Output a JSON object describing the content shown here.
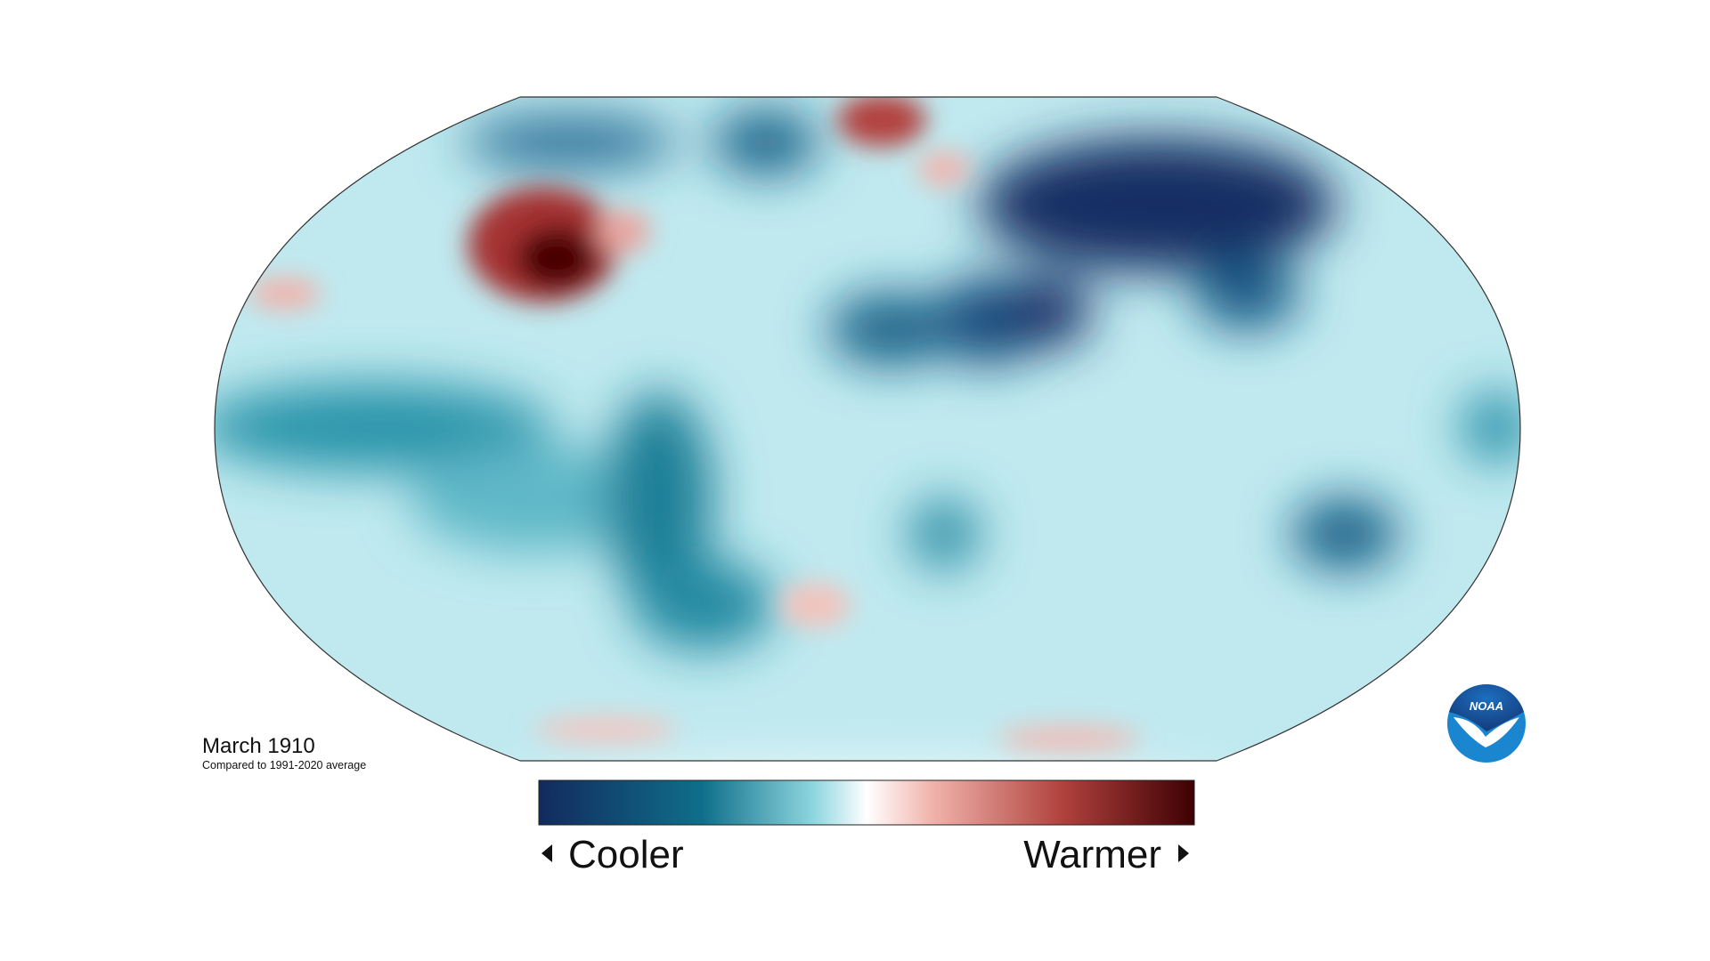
{
  "map": {
    "title": "March 1910",
    "subtitle": "Compared to 1991-2020 average",
    "legend": {
      "low": "Cooler",
      "high": "Warmer"
    }
  },
  "logo": "NOAA"
}
